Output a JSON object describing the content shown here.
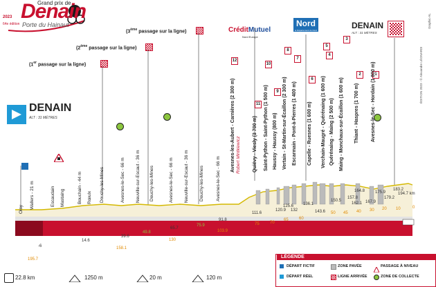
{
  "logo": {
    "title": "Denain",
    "grand_prix": "Grand prix de",
    "subtitle": "Porte du Hainaut",
    "year": "2023",
    "edition": "64e édition"
  },
  "start": {
    "name": "DENAIN",
    "alt": "ALT : 31 MÈTRES"
  },
  "finish": {
    "name": "DENAIN",
    "alt": "ALT : 31 MÈTRES"
  },
  "passages": [
    {
      "num": "1",
      "sup": "er",
      "text": "passage sur la ligne"
    },
    {
      "num": "2",
      "sup": "ème",
      "text": "passage sur la ligne"
    },
    {
      "num": "3",
      "sup": "ème",
      "text": "passage sur la ligne"
    }
  ],
  "sponsors": {
    "credit_mutuel": "Crédit Mutuel",
    "credit_mutuel_sub": "Nord Europe",
    "nord": "Nord",
    "nord_sub": "le Département du Nord"
  },
  "sectors": [
    {
      "num": "12",
      "name": "Avesnes-les-Aubert - Carnières",
      "len": "(2 300 m)",
      "note": "Robert Mintkiewicz"
    },
    {
      "num": "11",
      "name": "Quiévy - Viesly",
      "len": "(3 700 m)"
    },
    {
      "num": "10",
      "name": "Saint-Python - Saint-Python",
      "len": "(1 500 m)"
    },
    {
      "num": "9",
      "name": "Haussy - Haussy",
      "len": "(800 m)"
    },
    {
      "num": "8",
      "name": "Vertain - St-Martin-sur-Écaillon",
      "len": "(2 300 m)"
    },
    {
      "num": "7",
      "name": "Escarmain - Pont-à-Pierres",
      "len": "(1 400 m)"
    },
    {
      "num": "6",
      "name": "Capelle - Ruesnes",
      "len": "(1 600 m)"
    },
    {
      "num": "5",
      "name": "Verchain-Maugré - Quérénaing",
      "len": "(1 600 m)"
    },
    {
      "num": "4",
      "name": "Quérénaing - Maing",
      "len": "(2 500 m)"
    },
    {
      "num": "3",
      "name": "Maing - Monchaux-sur-Écaillon",
      "len": "(1 600 m)"
    },
    {
      "num": "2",
      "name": "Thiant - Haspres",
      "len": "(1 700 m)"
    },
    {
      "num": "1",
      "name": "Avesnes-le-Sec - Hordain",
      "len": "(1 800 m)"
    }
  ],
  "towns": [
    {
      "name": "Oisy",
      "alt": ""
    },
    {
      "name": "Wallers",
      "alt": "- 21 m"
    },
    {
      "name": "Escaudain",
      "alt": ""
    },
    {
      "name": "Mastaing",
      "alt": ""
    },
    {
      "name": "Bouchain",
      "alt": "- 44 m"
    },
    {
      "name": "Rœulx",
      "alt": ""
    },
    {
      "name": "Douchy-les-Mines",
      "alt": ""
    },
    {
      "name": "Avesnes-le-Sec",
      "alt": "- 66 m"
    },
    {
      "name": "Neuville-sur-Escaut",
      "alt": "- 36 m"
    },
    {
      "name": "Douchy-les-Mines",
      "alt": ""
    },
    {
      "name": "Avesnes-le-Sec",
      "alt": "- 66 m"
    },
    {
      "name": "Neuville-sur-Escaut",
      "alt": "- 36 m"
    },
    {
      "name": "Douchy-les-Mines",
      "alt": ""
    },
    {
      "name": "Avesnes-le-Sec",
      "alt": "- 66 m"
    }
  ],
  "km_black": [
    "-6",
    "14.6",
    "39.6",
    "65.7",
    "91.8",
    "111.6",
    "120.9",
    "125.6",
    "132",
    "136.1",
    "143.6",
    "150.5",
    "157.8",
    "162.1",
    "164.8",
    "167.9",
    "175.9",
    "179.2",
    "183.2",
    "194.7 km"
  ],
  "km_orange": [
    "195.7",
    "158.1",
    "130",
    "103.9",
    "75",
    "70",
    "65",
    "60",
    "50",
    "45",
    "40",
    "30",
    "20",
    "10",
    "0"
  ],
  "km_green": [
    "49.8",
    "75.9"
  ],
  "km_top": [
    "164.8",
    "175.9",
    "183.2"
  ],
  "legend": {
    "title": "LÉGENDE",
    "items": [
      "DÉPART FICTIF",
      "ZONE PAVÉE",
      "PASSAGE À NIVEAU",
      "DÉPART RÉEL",
      "LIGNE ARRIVÉE",
      "ZONE DE COLLECTE"
    ]
  },
  "summary": {
    "distance": "22.8 km",
    "climb1": "1250 m",
    "climb2": "20 m",
    "climb3": "120 m"
  },
  "credits": {
    "graphic": "Graphic-AL",
    "copyright": "ÉDITION 2023 - © Alexandre LÉONARDI"
  }
}
